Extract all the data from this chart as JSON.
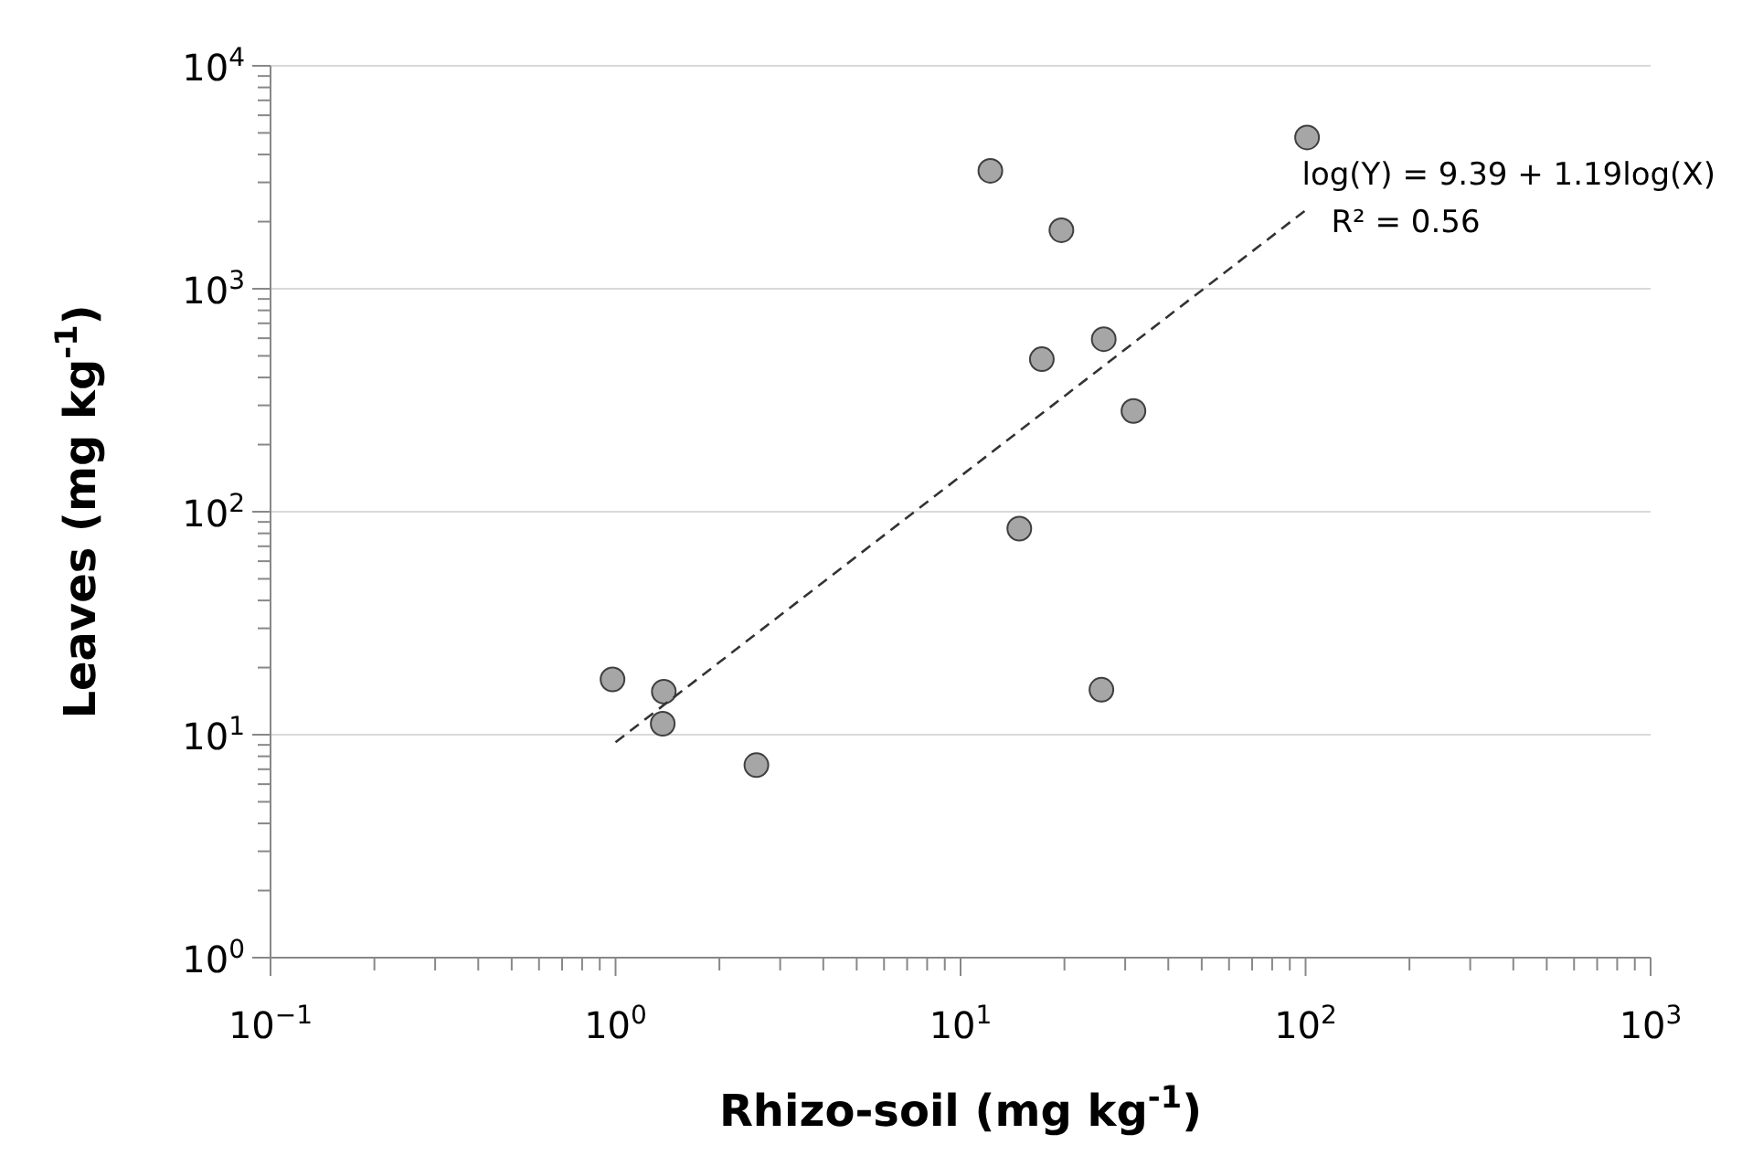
{
  "chart_data": {
    "type": "scatter",
    "xlabel": "Rhizo-soil (mg kg$^{-1}$)",
    "ylabel": "Leaves (mg kg$^{-1}$)",
    "log": "xy",
    "grid": "y",
    "marker": "circle",
    "xlim": [
      0.1,
      1000
    ],
    "ylim": [
      1,
      10000
    ],
    "xticks": [
      {
        "value": 0.1,
        "label": "10$^{−1}$"
      },
      {
        "value": 0.2,
        "label": null
      },
      {
        "value": 0.3,
        "label": null
      },
      {
        "value": 0.4,
        "label": null
      },
      {
        "value": 0.5,
        "label": null
      },
      {
        "value": 0.6,
        "label": null
      },
      {
        "value": 0.7,
        "label": null
      },
      {
        "value": 0.8,
        "label": null
      },
      {
        "value": 0.9,
        "label": null
      },
      {
        "value": 1,
        "label": "10$^{0}$"
      },
      {
        "value": 2,
        "label": null
      },
      {
        "value": 3,
        "label": null
      },
      {
        "value": 4,
        "label": null
      },
      {
        "value": 5,
        "label": null
      },
      {
        "value": 6,
        "label": null
      },
      {
        "value": 7,
        "label": null
      },
      {
        "value": 8,
        "label": null
      },
      {
        "value": 9,
        "label": null
      },
      {
        "value": 10,
        "label": "10$^{1}$"
      },
      {
        "value": 20,
        "label": null
      },
      {
        "value": 30,
        "label": null
      },
      {
        "value": 40,
        "label": null
      },
      {
        "value": 50,
        "label": null
      },
      {
        "value": 60,
        "label": null
      },
      {
        "value": 70,
        "label": null
      },
      {
        "value": 80,
        "label": null
      },
      {
        "value": 90,
        "label": null
      },
      {
        "value": 100,
        "label": "10$^{2}$"
      },
      {
        "value": 200,
        "label": null
      },
      {
        "value": 300,
        "label": null
      },
      {
        "value": 400,
        "label": null
      },
      {
        "value": 500,
        "label": null
      },
      {
        "value": 600,
        "label": null
      },
      {
        "value": 700,
        "label": null
      },
      {
        "value": 800,
        "label": null
      },
      {
        "value": 900,
        "label": null
      },
      {
        "value": 1000,
        "label": "10$^{3}$"
      }
    ],
    "yticks": [
      {
        "value": 1,
        "label": "10$^{0}$"
      },
      {
        "value": 2,
        "label": null
      },
      {
        "value": 3,
        "label": null
      },
      {
        "value": 4,
        "label": null
      },
      {
        "value": 5,
        "label": null
      },
      {
        "value": 6,
        "label": null
      },
      {
        "value": 7,
        "label": null
      },
      {
        "value": 8,
        "label": null
      },
      {
        "value": 9,
        "label": null
      },
      {
        "value": 10,
        "label": "10$^{1}$"
      },
      {
        "value": 20,
        "label": null
      },
      {
        "value": 30,
        "label": null
      },
      {
        "value": 40,
        "label": null
      },
      {
        "value": 50,
        "label": null
      },
      {
        "value": 60,
        "label": null
      },
      {
        "value": 70,
        "label": null
      },
      {
        "value": 80,
        "label": null
      },
      {
        "value": 90,
        "label": null
      },
      {
        "value": 100,
        "label": "10$^{2}$"
      },
      {
        "value": 200,
        "label": null
      },
      {
        "value": 300,
        "label": null
      },
      {
        "value": 400,
        "label": null
      },
      {
        "value": 500,
        "label": null
      },
      {
        "value": 600,
        "label": null
      },
      {
        "value": 700,
        "label": null
      },
      {
        "value": 800,
        "label": null
      },
      {
        "value": 900,
        "label": null
      },
      {
        "value": 1000,
        "label": "10$^{3}$"
      },
      {
        "value": 2000,
        "label": null
      },
      {
        "value": 3000,
        "label": null
      },
      {
        "value": 4000,
        "label": null
      },
      {
        "value": 5000,
        "label": null
      },
      {
        "value": 6000,
        "label": null
      },
      {
        "value": 7000,
        "label": null
      },
      {
        "value": 8000,
        "label": null
      },
      {
        "value": 9000,
        "label": null
      },
      {
        "value": 10000,
        "label": "10$^{4}$"
      }
    ],
    "series": [
      {
        "color": "#a6a6a6",
        "x": [
          0.98,
          1.38,
          1.37,
          2.56,
          12.2,
          19.6,
          17.2,
          26,
          31.7,
          14.8,
          25.6,
          101
        ],
        "values": [
          17.7,
          15.6,
          11.2,
          7.3,
          3380,
          1830,
          483,
          594,
          283,
          84,
          15.9,
          4770
        ]
      },
      {
        "type": "line",
        "color": "#333333",
        "line_style": "dashed",
        "marker": "none",
        "x": [
          1,
          100
        ],
        "values": [
          9.25,
          2250
        ]
      }
    ],
    "annotations": [
      "log(Y) = 9.39 + 1.19log(X)",
      "R² = 0.56"
    ]
  }
}
